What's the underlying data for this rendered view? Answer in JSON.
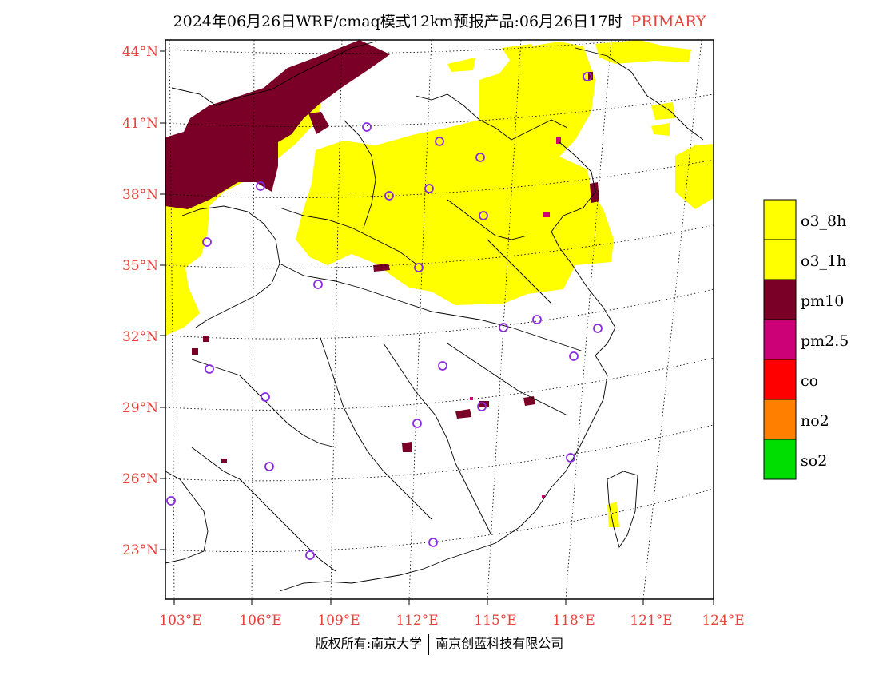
{
  "title": {
    "main": "2024年06月26日WRF/cmaq模式12km预报产品:06月26日17时",
    "tag": "PRIMARY"
  },
  "map": {
    "lat_labels": [
      "44°N",
      "41°N",
      "38°N",
      "35°N",
      "32°N",
      "29°N",
      "26°N",
      "23°N"
    ],
    "lon_labels": [
      "103°E",
      "106°E",
      "109°E",
      "112°E",
      "115°E",
      "118°E",
      "121°E",
      "124°E"
    ]
  },
  "legend": {
    "items": [
      {
        "label": "o3_8h",
        "color": "#ffff00"
      },
      {
        "label": "o3_1h",
        "color": "#ffff00"
      },
      {
        "label": "pm10",
        "color": "#7a0028"
      },
      {
        "label": "pm2.5",
        "color": "#cc0077"
      },
      {
        "label": "co",
        "color": "#ff0000"
      },
      {
        "label": "no2",
        "color": "#ff7f00"
      },
      {
        "label": "so2",
        "color": "#00dd00"
      }
    ]
  },
  "footer": {
    "left": "版权所有:南京大学",
    "right": "南京创蓝科技有限公司"
  },
  "colors": {
    "o3": "#ffff00",
    "pm10": "#7a0028",
    "pm25": "#cc0077",
    "station": "#8a2be2",
    "label": "#e8423a"
  }
}
